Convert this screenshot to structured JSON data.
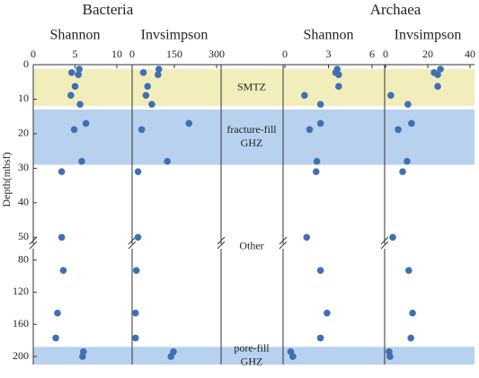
{
  "chart_data": {
    "type": "scatter",
    "y_label": "Depth(mbsf)",
    "depth": [
      1.3,
      2.3,
      2.9,
      6.3,
      8.9,
      11.5,
      17,
      18.8,
      28,
      31,
      50,
      93,
      146,
      177,
      194,
      200
    ],
    "y_segments": [
      {
        "ylim": [
          0,
          52
        ],
        "yticks": [
          0,
          10,
          20,
          30,
          40,
          50
        ]
      },
      {
        "ylim": [
          66,
          210
        ],
        "yticks": [
          80,
          120,
          160,
          200
        ]
      }
    ],
    "zones": [
      {
        "label": [
          "SMTZ"
        ],
        "from": 1.3,
        "to": 12,
        "color": "#f2eebc"
      },
      {
        "label": [
          "fracture-fill",
          "GHZ"
        ],
        "from": 13,
        "to": 29,
        "color": "#b8d1ee"
      },
      {
        "label": [
          "Other"
        ],
        "from": 29,
        "to": 188,
        "color": "#ffffff"
      },
      {
        "label": [
          "pore-fill",
          "GHZ"
        ],
        "from": 188,
        "to": 210,
        "color": "#b8d1ee"
      }
    ],
    "marker_color": "#3f6fb5",
    "groups": [
      {
        "name": "Bacteria",
        "panels": [
          {
            "title": "Shannon",
            "xlim": [
              0,
              10
            ],
            "xticks": [
              0,
              5,
              10
            ],
            "values": [
              5.5,
              4.6,
              5.4,
              5.0,
              4.5,
              5.6,
              6.3,
              4.9,
              5.8,
              3.4,
              3.4,
              3.6,
              2.9,
              2.7,
              6.0,
              5.9
            ]
          },
          {
            "title": "Invsimpson",
            "xlim": [
              0,
              300
            ],
            "xticks": [
              0,
              150,
              300
            ],
            "values": [
              95,
              40,
              92,
              55,
              49,
              70,
              202,
              34,
              125,
              21,
              21,
              15,
              12,
              12,
              147,
              138
            ]
          }
        ]
      },
      {
        "name": "Archaea",
        "panels": [
          {
            "title": "Shannon",
            "xlim": [
              0,
              6
            ],
            "xticks": [
              0,
              3,
              6
            ],
            "values": [
              3.6,
              3.5,
              3.7,
              3.7,
              1.35,
              2.45,
              2.45,
              1.7,
              2.2,
              2.15,
              1.5,
              2.45,
              2.9,
              2.45,
              0.4,
              0.55
            ]
          },
          {
            "title": "Invsimpson",
            "xlim": [
              0,
              40
            ],
            "xticks": [
              0,
              20,
              40
            ],
            "values": [
              26,
              23,
              24.7,
              24.7,
              2.5,
              10.6,
              12.3,
              6,
              10.2,
              8.1,
              3.4,
              11,
              12.8,
              12,
              1.7,
              2.1
            ]
          }
        ]
      }
    ]
  }
}
